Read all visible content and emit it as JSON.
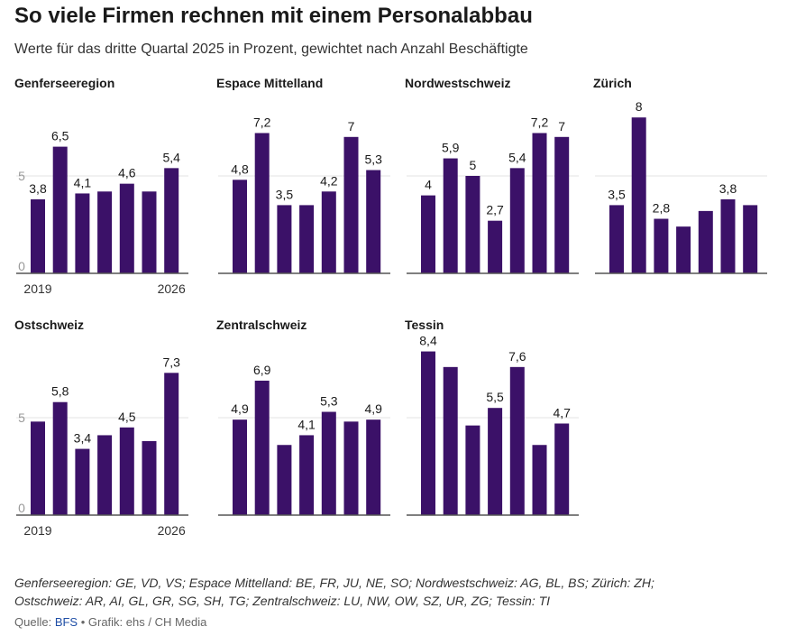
{
  "title": "So viele Firmen rechnen mit einem Personalabbau",
  "subtitle": "Werte für das dritte Quartal 2025 in Prozent, gewichtet nach Anzahl Beschäftigte",
  "footnote": {
    "line1": "Genferseeregion: GE, VD, VS; Espace Mittelland: BE, FR, JU, NE, SO; Nordwestschweiz: AG, BL, BS; Zürich: ZH;",
    "line2": "Ostschweiz: AR, AI, GL, GR, SG, SH, TG; Zentralschweiz: LU, NW, OW, SZ, UR, ZG; Tessin: TI"
  },
  "source": {
    "prefix": "Quelle: ",
    "link": "BFS",
    "suffix": " • Grafik: ehs / CH Media"
  },
  "colors": {
    "bar": "#3b1168",
    "grid": "#e3e3e3",
    "axis": "#555555",
    "tick": "#999999"
  },
  "chart_data": {
    "type": "bar",
    "x_tick_labels": [
      "2019",
      "2026"
    ],
    "y_ticks": [
      0,
      5
    ],
    "ylim": [
      0,
      9
    ],
    "panels": [
      {
        "name": "Genferseeregion",
        "values": [
          3.8,
          6.5,
          4.1,
          4.2,
          4.6,
          4.2,
          5.4
        ],
        "labels": [
          "3,8",
          "6,5",
          "4,1",
          "",
          "4,6",
          "",
          "5,4"
        ],
        "show_y_axis": true,
        "show_x_axis": true
      },
      {
        "name": "Espace Mittelland",
        "values": [
          4.8,
          7.2,
          3.5,
          3.5,
          4.2,
          7.0,
          5.3
        ],
        "labels": [
          "4,8",
          "7,2",
          "3,5",
          "",
          "4,2",
          "7",
          "5,3"
        ],
        "show_y_axis": false,
        "show_x_axis": false
      },
      {
        "name": "Nordwestschweiz",
        "values": [
          4.0,
          5.9,
          5.0,
          2.7,
          5.4,
          7.2,
          7.0
        ],
        "labels": [
          "4",
          "5,9",
          "5",
          "2,7",
          "5,4",
          "7,2",
          "7"
        ],
        "show_y_axis": false,
        "show_x_axis": false
      },
      {
        "name": "Zürich",
        "values": [
          3.5,
          8.0,
          2.8,
          2.4,
          3.2,
          3.8,
          3.5
        ],
        "labels": [
          "3,5",
          "8",
          "2,8",
          "",
          "",
          "3,8",
          ""
        ],
        "show_y_axis": false,
        "show_x_axis": false
      },
      {
        "name": "Ostschweiz",
        "values": [
          4.8,
          5.8,
          3.4,
          4.1,
          4.5,
          3.8,
          7.3
        ],
        "labels": [
          "",
          "5,8",
          "3,4",
          "",
          "4,5",
          "",
          "7,3"
        ],
        "show_y_axis": true,
        "show_x_axis": true
      },
      {
        "name": "Zentralschweiz",
        "values": [
          4.9,
          6.9,
          3.6,
          4.1,
          5.3,
          4.8,
          4.9
        ],
        "labels": [
          "4,9",
          "6,9",
          "",
          "4,1",
          "5,3",
          "",
          "4,9"
        ],
        "show_y_axis": false,
        "show_x_axis": false
      },
      {
        "name": "Tessin",
        "values": [
          8.4,
          7.6,
          4.6,
          5.5,
          7.6,
          3.6,
          4.7
        ],
        "labels": [
          "8,4",
          "",
          "",
          "5,5",
          "7,6",
          "",
          "4,7"
        ],
        "show_y_axis": false,
        "show_x_axis": false
      }
    ]
  }
}
